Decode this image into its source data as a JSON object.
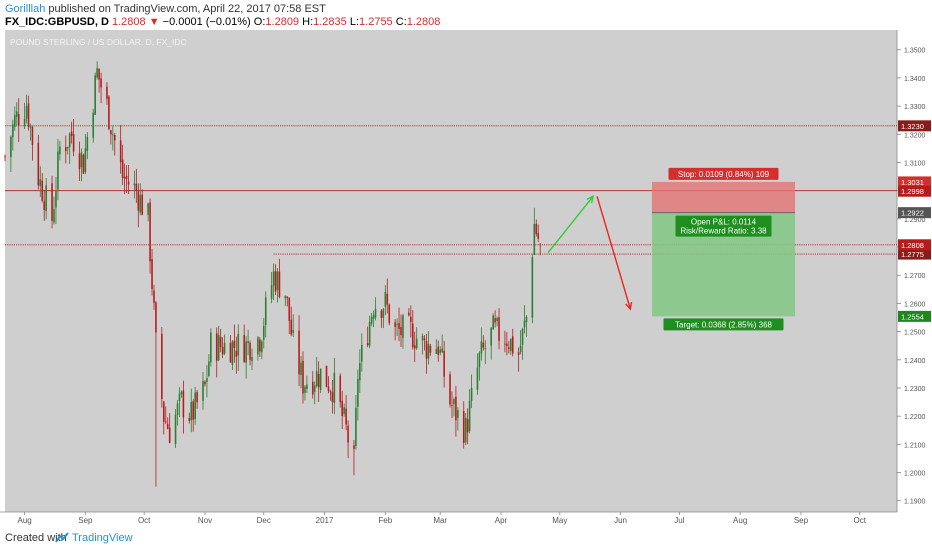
{
  "header": {
    "author": "Gorilllah",
    "published_text": "published on TradingView.com, April 22, 2017 07:58 EST",
    "symbol": "FX_IDC:GBPUSD, D",
    "last": "1.2808",
    "change_arrow": "▼",
    "change": "−0.0001 (−0.01%)",
    "o_label": "O:",
    "o_value": "1.2809",
    "h_label": "H:",
    "h_value": "1.2835",
    "l_label": "L:",
    "l_value": "1.2755",
    "c_label": "C:",
    "c_value": "1.2808"
  },
  "footer": {
    "created_with": "Created with",
    "brand": "TradingView"
  },
  "colors": {
    "background": "#cfcfcf",
    "up": "#2e7d32",
    "down": "#b71c1c",
    "stop_zone": "#e57373",
    "target_zone": "#81c784",
    "line_red": "#d32f2f",
    "arrow_green": "#33cc33",
    "arrow_red": "#ee2222"
  },
  "chart_data": {
    "type": "candlestick",
    "title": "POUND STERLING / US DOLLAR, D, FX_IDC",
    "y_ticks": [
      "1.3500",
      "1.3400",
      "1.3300",
      "1.3200",
      "1.3100",
      "1.3000",
      "1.2900",
      "1.2800",
      "1.2700",
      "1.2600",
      "1.2500",
      "1.2400",
      "1.2300",
      "1.2200",
      "1.2100",
      "1.2000",
      "1.1900"
    ],
    "ylim": [
      1.186,
      1.357
    ],
    "x_labels": [
      {
        "label": "Aug",
        "date": "2016-08-01"
      },
      {
        "label": "Sep",
        "date": "2016-09-01"
      },
      {
        "label": "Oct",
        "date": "2016-10-01"
      },
      {
        "label": "Nov",
        "date": "2016-11-01"
      },
      {
        "label": "Dec",
        "date": "2016-12-01"
      },
      {
        "label": "2017",
        "date": "2017-01-01"
      },
      {
        "label": "Feb",
        "date": "2017-02-01"
      },
      {
        "label": "Mar",
        "date": "2017-03-01"
      },
      {
        "label": "Apr",
        "date": "2017-04-01"
      },
      {
        "label": "May",
        "date": "2017-05-01"
      },
      {
        "label": "Jun",
        "date": "2017-06-01"
      },
      {
        "label": "Jul",
        "date": "2017-07-01"
      },
      {
        "label": "Aug",
        "date": "2017-08-01"
      },
      {
        "label": "Sep",
        "date": "2017-09-01"
      },
      {
        "label": "Oct",
        "date": "2017-10-01"
      }
    ],
    "xlim": [
      "2016-07-22",
      "2017-10-20"
    ],
    "path_anchors": [
      {
        "date": "2016-07-22",
        "close": 1.312
      },
      {
        "date": "2016-07-27",
        "close": 1.325
      },
      {
        "date": "2016-08-02",
        "close": 1.331
      },
      {
        "date": "2016-08-08",
        "close": 1.305
      },
      {
        "date": "2016-08-15",
        "close": 1.29
      },
      {
        "date": "2016-08-19",
        "close": 1.315
      },
      {
        "date": "2016-08-25",
        "close": 1.32
      },
      {
        "date": "2016-08-31",
        "close": 1.31
      },
      {
        "date": "2016-09-07",
        "close": 1.342
      },
      {
        "date": "2016-09-12",
        "close": 1.33
      },
      {
        "date": "2016-09-20",
        "close": 1.305
      },
      {
        "date": "2016-09-27",
        "close": 1.3
      },
      {
        "date": "2016-10-03",
        "close": 1.29
      },
      {
        "date": "2016-10-07",
        "close": 1.245
      },
      {
        "date": "2016-10-11",
        "close": 1.22
      },
      {
        "date": "2016-10-14",
        "close": 1.215
      },
      {
        "date": "2016-10-20",
        "close": 1.225
      },
      {
        "date": "2016-10-25",
        "close": 1.22
      },
      {
        "date": "2016-11-01",
        "close": 1.23
      },
      {
        "date": "2016-11-04",
        "close": 1.245
      },
      {
        "date": "2016-11-10",
        "close": 1.245
      },
      {
        "date": "2016-11-15",
        "close": 1.245
      },
      {
        "date": "2016-11-22",
        "close": 1.245
      },
      {
        "date": "2016-11-29",
        "close": 1.248
      },
      {
        "date": "2016-12-06",
        "close": 1.27
      },
      {
        "date": "2016-12-12",
        "close": 1.264
      },
      {
        "date": "2016-12-16",
        "close": 1.245
      },
      {
        "date": "2016-12-21",
        "close": 1.232
      },
      {
        "date": "2016-12-30",
        "close": 1.235
      },
      {
        "date": "2017-01-06",
        "close": 1.23
      },
      {
        "date": "2017-01-12",
        "close": 1.215
      },
      {
        "date": "2017-01-16",
        "close": 1.203
      },
      {
        "date": "2017-01-18",
        "close": 1.235
      },
      {
        "date": "2017-01-26",
        "close": 1.26
      },
      {
        "date": "2017-02-01",
        "close": 1.26
      },
      {
        "date": "2017-02-06",
        "close": 1.25
      },
      {
        "date": "2017-02-14",
        "close": 1.25
      },
      {
        "date": "2017-02-21",
        "close": 1.245
      },
      {
        "date": "2017-02-28",
        "close": 1.245
      },
      {
        "date": "2017-03-06",
        "close": 1.225
      },
      {
        "date": "2017-03-14",
        "close": 1.215
      },
      {
        "date": "2017-03-21",
        "close": 1.24
      },
      {
        "date": "2017-03-28",
        "close": 1.25
      },
      {
        "date": "2017-04-04",
        "close": 1.248
      },
      {
        "date": "2017-04-10",
        "close": 1.242
      },
      {
        "date": "2017-04-14",
        "close": 1.255
      },
      {
        "date": "2017-04-18",
        "close": 1.288
      },
      {
        "date": "2017-04-21",
        "close": 1.2808
      }
    ],
    "lows": [
      {
        "date": "2016-10-07",
        "low": 1.195
      },
      {
        "date": "2017-01-16",
        "low": 1.199
      }
    ],
    "horizontal_lines": [
      {
        "price": 1.323,
        "label": "1.3230",
        "style": "dotted"
      },
      {
        "price": 1.3,
        "style": "solid"
      },
      {
        "price": 1.2775,
        "label": "1.2775",
        "style": "dotted",
        "from_date": "2016-12-06"
      },
      {
        "price": 1.2808,
        "label": "1.2808",
        "style": "current"
      }
    ],
    "price_labels": [
      {
        "price": 1.3031,
        "label": "1.3031",
        "color": "#d32f2f"
      },
      {
        "price": 1.2998,
        "label": "1.2998",
        "color": "#b71c1c"
      },
      {
        "price": 1.2922,
        "label": "1.2922",
        "color": "#555555"
      },
      {
        "price": 1.2554,
        "label": "1.2554",
        "color": "#1b8a1b"
      }
    ],
    "position": {
      "from_date": "2017-06-17",
      "to_date": "2017-08-29",
      "entry": 1.2922,
      "stop": 1.3031,
      "target": 1.2554,
      "stop_label": "Stop: 0.0109 (0.84%) 109",
      "target_label": "Target: 0.0368 (2.85%) 368",
      "pnl_label": "Open P&L: 0.0114",
      "rr_label": "Risk/Reward Ratio: 3.38"
    },
    "arrows": [
      {
        "from_date": "2017-04-25",
        "from_price": 1.278,
        "to_date": "2017-05-18",
        "to_price": 1.298,
        "color": "green"
      },
      {
        "from_date": "2017-05-20",
        "from_price": 1.298,
        "to_date": "2017-06-06",
        "to_price": 1.258,
        "color": "red"
      }
    ]
  }
}
